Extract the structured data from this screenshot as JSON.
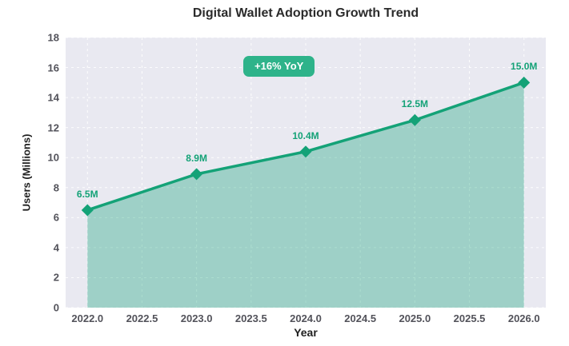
{
  "chart_data": {
    "type": "area",
    "title": "Digital Wallet Adoption Growth Trend",
    "xlabel": "Year",
    "ylabel": "Users (Millions)",
    "x": [
      2022,
      2023,
      2024,
      2025,
      2026
    ],
    "values": [
      6.5,
      8.9,
      10.4,
      12.5,
      15.0
    ],
    "point_labels": [
      "6.5M",
      "8.9M",
      "10.4M",
      "12.5M",
      "15.0M"
    ],
    "annotation": "+16% YoY",
    "x_ticks": [
      2022.0,
      2022.5,
      2023.0,
      2023.5,
      2024.0,
      2024.5,
      2025.0,
      2025.5,
      2026.0
    ],
    "x_tick_labels": [
      "2022.0",
      "2022.5",
      "2023.0",
      "2023.5",
      "2024.0",
      "2024.5",
      "2025.0",
      "2025.5",
      "2026.0"
    ],
    "y_ticks": [
      0,
      2,
      4,
      6,
      8,
      10,
      12,
      14,
      16,
      18
    ],
    "y_tick_labels": [
      "0",
      "2",
      "4",
      "6",
      "8",
      "10",
      "12",
      "14",
      "16",
      "18"
    ],
    "xlim": [
      2021.8,
      2026.2
    ],
    "ylim": [
      0,
      18
    ],
    "grid": "white dashed, horizontal and vertical",
    "legend": "none"
  },
  "colors": {
    "line": "#14a277",
    "area_opacity": "0.35",
    "badge_bg": "#2eb38a",
    "badge_text": "#ffffff",
    "plot_bg": "#e9e9f1",
    "grid": "#ffffff",
    "title_text": "#2b2b2b",
    "tick_text": "#52525a",
    "axis_label_text": "#1f1f1f"
  }
}
